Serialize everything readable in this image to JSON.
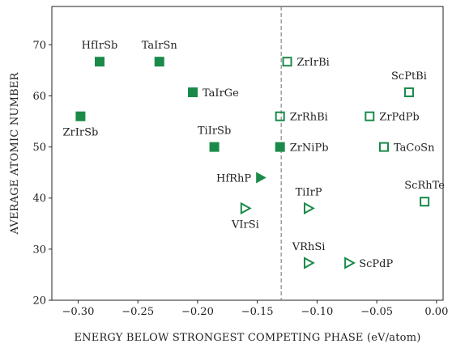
{
  "chart_data": {
    "type": "scatter",
    "title": "",
    "xlabel": "ENERGY BELOW STRONGEST COMPETING PHASE (eV/atom)",
    "ylabel": "AVERAGE ATOMIC NUMBER",
    "xlim": [
      -0.322,
      0.0055
    ],
    "ylim": [
      20,
      77.5
    ],
    "xticks": [
      -0.3,
      -0.25,
      -0.2,
      -0.15,
      -0.1,
      -0.05,
      0.0
    ],
    "xtick_labels": [
      "−0.30",
      "−0.25",
      "−0.20",
      "−0.15",
      "−0.10",
      "−0.05",
      "0.00"
    ],
    "yticks": [
      20,
      30,
      40,
      50,
      60,
      70
    ],
    "ytick_labels": [
      "20",
      "30",
      "40",
      "50",
      "60",
      "70"
    ],
    "grid": false,
    "color": "#1a8a4a",
    "reference_line": {
      "x": -0.13,
      "style": "dashed",
      "color": "#888888"
    },
    "points": [
      {
        "label": "HfIrSb",
        "x": -0.282,
        "y": 66.7,
        "marker": "square",
        "filled": true,
        "label_pos": "above"
      },
      {
        "label": "TaIrSn",
        "x": -0.232,
        "y": 66.7,
        "marker": "square",
        "filled": true,
        "label_pos": "above"
      },
      {
        "label": "TaIrGe",
        "x": -0.204,
        "y": 60.7,
        "marker": "square",
        "filled": true,
        "label_pos": "right"
      },
      {
        "label": "ZrIrSb",
        "x": -0.298,
        "y": 56.0,
        "marker": "square",
        "filled": true,
        "label_pos": "below"
      },
      {
        "label": "TiIrSb",
        "x": -0.186,
        "y": 50.0,
        "marker": "square",
        "filled": true,
        "label_pos": "above"
      },
      {
        "label": "ZrIrBi",
        "x": -0.125,
        "y": 66.7,
        "marker": "square",
        "filled": false,
        "label_pos": "right"
      },
      {
        "label": "ScPtBi",
        "x": -0.023,
        "y": 60.7,
        "marker": "square",
        "filled": false,
        "label_pos": "above"
      },
      {
        "label": "ZrRhBi",
        "x": -0.131,
        "y": 56.0,
        "marker": "square",
        "filled": false,
        "label_pos": "right"
      },
      {
        "label": "ZrPdPb",
        "x": -0.056,
        "y": 56.0,
        "marker": "square",
        "filled": false,
        "label_pos": "right"
      },
      {
        "label": "ZrNiPb",
        "x": -0.131,
        "y": 50.0,
        "marker": "square",
        "filled": true,
        "label_pos": "right"
      },
      {
        "label": "TaCoSn",
        "x": -0.044,
        "y": 50.0,
        "marker": "square",
        "filled": false,
        "label_pos": "right"
      },
      {
        "label": "HfRhP",
        "x": -0.147,
        "y": 44.0,
        "marker": "triangle-right",
        "filled": true,
        "label_pos": "left"
      },
      {
        "label": "ScRhTe",
        "x": -0.01,
        "y": 39.3,
        "marker": "square",
        "filled": false,
        "label_pos": "above"
      },
      {
        "label": "VIrSi",
        "x": -0.16,
        "y": 38.0,
        "marker": "triangle-right",
        "filled": false,
        "label_pos": "below"
      },
      {
        "label": "TiIrP",
        "x": -0.107,
        "y": 38.0,
        "marker": "triangle-right",
        "filled": false,
        "label_pos": "above"
      },
      {
        "label": "VRhSi",
        "x": -0.107,
        "y": 27.3,
        "marker": "triangle-right",
        "filled": false,
        "label_pos": "above"
      },
      {
        "label": "ScPdP",
        "x": -0.073,
        "y": 27.3,
        "marker": "triangle-right",
        "filled": false,
        "label_pos": "right"
      }
    ]
  }
}
